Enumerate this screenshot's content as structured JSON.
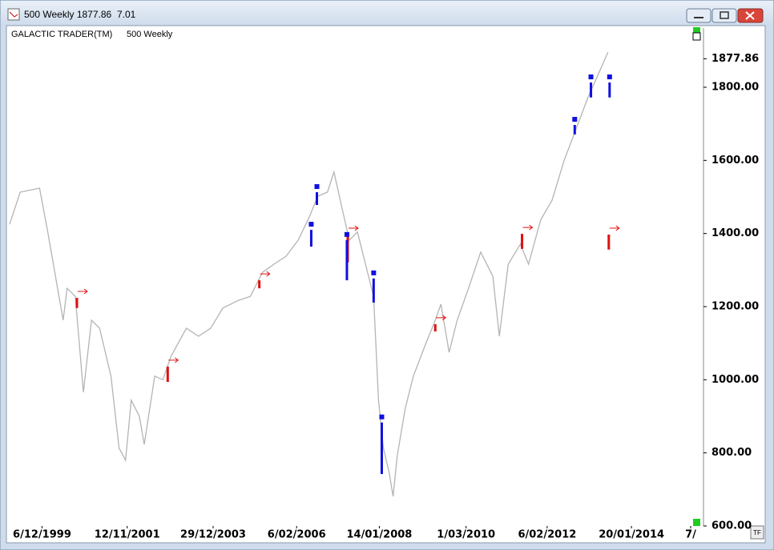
{
  "window": {
    "title": "500 Weekly 1877.86",
    "info": "7.01",
    "corner_badge": "TF"
  },
  "chart_data": {
    "type": "line",
    "title": "GALACTIC TRADER(TM)",
    "subtitle": "500 Weekly",
    "last_price": 1877.86,
    "xlim": [
      -40,
      800
    ],
    "xticks": [
      {
        "value": 0,
        "label": "6/12/1999"
      },
      {
        "value": 105,
        "label": "12/11/2001"
      },
      {
        "value": 211,
        "label": "29/12/2003"
      },
      {
        "value": 314,
        "label": "6/02/2006"
      },
      {
        "value": 416,
        "label": "14/01/2008"
      },
      {
        "value": 523,
        "label": "1/03/2010"
      },
      {
        "value": 623,
        "label": "6/02/2012"
      },
      {
        "value": 727,
        "label": "20/01/2014"
      },
      {
        "value": 800,
        "label": "7/"
      }
    ],
    "ylim": [
      600,
      1962
    ],
    "yticks": [
      {
        "value": 600,
        "label": "600.00"
      },
      {
        "value": 800,
        "label": "800.00"
      },
      {
        "value": 1000,
        "label": "1000.00"
      },
      {
        "value": 1200,
        "label": "1200.00"
      },
      {
        "value": 1400,
        "label": "1400.00"
      },
      {
        "value": 1600,
        "label": "1600.00"
      },
      {
        "value": 1800,
        "label": "1800.00"
      }
    ],
    "grid": false,
    "series": [
      {
        "color": "#b4b4b4",
        "x": [
          -40,
          -27,
          -3,
          7,
          26,
          31,
          41,
          51,
          61,
          71,
          85,
          95,
          103,
          110,
          120,
          126,
          139,
          149,
          159,
          178,
          193,
          208,
          223,
          242,
          257,
          272,
          286,
          301,
          316,
          330,
          340,
          352,
          360,
          370,
          379,
          389,
          399,
          409,
          415,
          421,
          428,
          433,
          438,
          448,
          458,
          473,
          485,
          492,
          502,
          512,
          526,
          541,
          556,
          564,
          575,
          590,
          600,
          615,
          629,
          644,
          659,
          674,
          683,
          698
        ],
        "values": [
          1425,
          1513,
          1524,
          1404,
          1163,
          1250,
          1228,
          966,
          1163,
          1141,
          1010,
          813,
          780,
          944,
          900,
          823,
          1010,
          1000,
          1064,
          1141,
          1119,
          1141,
          1196,
          1217,
          1228,
          1294,
          1316,
          1338,
          1382,
          1447,
          1502,
          1513,
          1568,
          1469,
          1382,
          1404,
          1316,
          1228,
          944,
          813,
          747,
          681,
          791,
          922,
          1010,
          1097,
          1163,
          1207,
          1075,
          1163,
          1250,
          1349,
          1283,
          1119,
          1316,
          1371,
          1316,
          1437,
          1491,
          1600,
          1688,
          1776,
          1820,
          1896
        ]
      }
    ],
    "signals": [
      {
        "x": 43,
        "low": 1196,
        "high": 1224,
        "color": "#e01010"
      },
      {
        "x": 155,
        "low": 994,
        "high": 1036,
        "color": "#e01010"
      },
      {
        "x": 268,
        "low": 1250,
        "high": 1272,
        "color": "#e01010"
      },
      {
        "x": 377,
        "low": 1321,
        "high": 1397,
        "color": "#e01010"
      },
      {
        "x": 485,
        "low": 1132,
        "high": 1152,
        "color": "#e01010"
      },
      {
        "x": 592,
        "low": 1358,
        "high": 1399,
        "color": "#e01010"
      },
      {
        "x": 699,
        "low": 1356,
        "high": 1397,
        "color": "#e01010"
      },
      {
        "x": 332,
        "low": 1364,
        "high": 1410,
        "color": "#1010e0"
      },
      {
        "x": 339,
        "low": 1478,
        "high": 1513,
        "color": "#1010e0"
      },
      {
        "x": 376,
        "low": 1272,
        "high": 1382,
        "color": "#1010e0"
      },
      {
        "x": 409,
        "low": 1211,
        "high": 1277,
        "color": "#1010e0"
      },
      {
        "x": 419,
        "low": 742,
        "high": 883,
        "color": "#1010e0"
      },
      {
        "x": 657,
        "low": 1671,
        "high": 1697,
        "color": "#1010e0"
      },
      {
        "x": 677,
        "low": 1772,
        "high": 1813,
        "color": "#1010e0"
      },
      {
        "x": 700,
        "low": 1772,
        "high": 1813,
        "color": "#1010e0"
      }
    ]
  }
}
